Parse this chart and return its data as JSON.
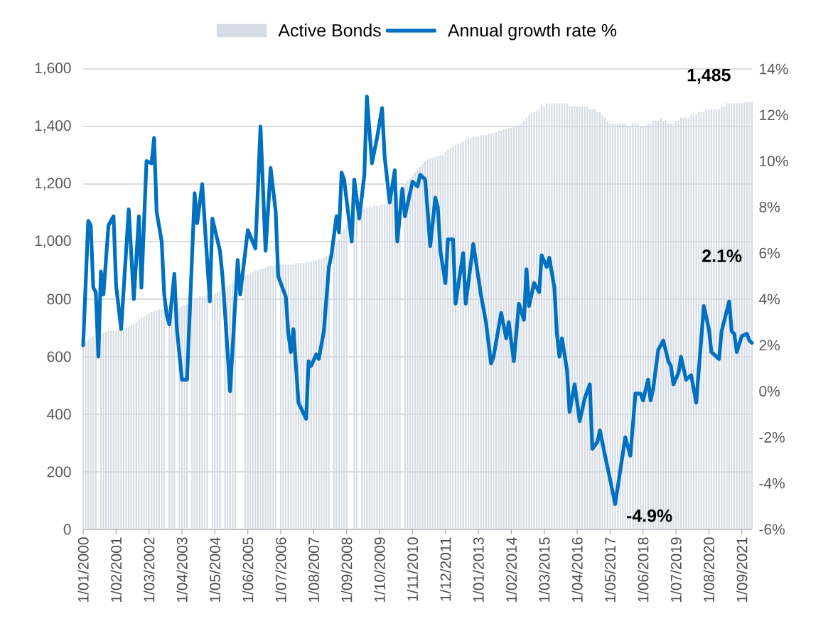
{
  "chart_data": {
    "type": "bar",
    "xlim": [
      "2000-01",
      "2022-01"
    ],
    "xticks": [
      {
        "value": "2000-01",
        "label": "1/01/2000"
      },
      {
        "value": "2001-02",
        "label": "1/02/2001"
      },
      {
        "value": "2002-03",
        "label": "1/03/2002"
      },
      {
        "value": "2003-04",
        "label": "1/04/2003"
      },
      {
        "value": "2004-05",
        "label": "1/05/2004"
      },
      {
        "value": "2005-06",
        "label": "1/06/2005"
      },
      {
        "value": "2006-07",
        "label": "1/07/2006"
      },
      {
        "value": "2007-08",
        "label": "1/08/2007"
      },
      {
        "value": "2008-09",
        "label": "1/09/2008"
      },
      {
        "value": "2009-10",
        "label": "1/10/2009"
      },
      {
        "value": "2010-11",
        "label": "1/11/2010"
      },
      {
        "value": "2011-12",
        "label": "1/12/2011"
      },
      {
        "value": "2013-01",
        "label": "1/01/2013"
      },
      {
        "value": "2014-02",
        "label": "1/02/2014"
      },
      {
        "value": "2015-03",
        "label": "1/03/2015"
      },
      {
        "value": "2016-04",
        "label": "1/04/2016"
      },
      {
        "value": "2017-05",
        "label": "1/05/2017"
      },
      {
        "value": "2018-06",
        "label": "1/06/2018"
      },
      {
        "value": "2019-07",
        "label": "1/07/2019"
      },
      {
        "value": "2020-08",
        "label": "1/08/2020"
      },
      {
        "value": "2021-09",
        "label": "1/09/2021"
      }
    ],
    "ylim": [
      0,
      1600
    ],
    "yticks": [
      0,
      200,
      400,
      600,
      800,
      {
        "value": 1000,
        "label": "1,000"
      },
      {
        "value": 1200,
        "label": "1,200"
      },
      {
        "value": 1400,
        "label": "1,400"
      },
      {
        "value": 1600,
        "label": "1,600"
      }
    ],
    "y2lim": [
      -6,
      14
    ],
    "y2ticks": [
      {
        "value": -6,
        "label": "-6%"
      },
      {
        "value": -4,
        "label": "-4%"
      },
      {
        "value": -2,
        "label": "-2%"
      },
      {
        "value": 0,
        "label": "0%"
      },
      {
        "value": 2,
        "label": "2%"
      },
      {
        "value": 4,
        "label": "4%"
      },
      {
        "value": 6,
        "label": "6%"
      },
      {
        "value": 8,
        "label": "8%"
      },
      {
        "value": 10,
        "label": "10%"
      },
      {
        "value": 12,
        "label": "12%"
      },
      {
        "value": 14,
        "label": "14%"
      }
    ],
    "grid": "y",
    "legend": "top",
    "x": [
      "2000-01",
      "2000-02",
      "2000-03",
      "2000-04",
      "2000-05",
      "2000-06",
      "2000-07",
      "2000-08",
      "2000-09",
      "2000-10",
      "2000-11",
      "2000-12",
      "2001-01",
      "2001-02",
      "2001-03",
      "2001-04",
      "2001-05",
      "2001-06",
      "2001-07",
      "2001-08",
      "2001-09",
      "2001-10",
      "2001-11",
      "2001-12",
      "2002-01",
      "2002-02",
      "2002-03",
      "2002-04",
      "2002-05",
      "2002-06",
      "2002-07",
      "2002-08",
      "2002-09",
      "2002-10",
      "2002-11",
      "2002-12",
      "2003-01",
      "2003-02",
      "2003-03",
      "2003-04",
      "2003-05",
      "2003-06",
      "2003-07",
      "2003-08",
      "2003-09",
      "2003-10",
      "2003-11",
      "2003-12",
      "2004-01",
      "2004-02",
      "2004-03",
      "2004-04",
      "2004-05",
      "2004-06",
      "2004-07",
      "2004-08",
      "2004-09",
      "2004-10",
      "2004-11",
      "2004-12",
      "2005-01",
      "2005-02",
      "2005-03",
      "2005-04",
      "2005-05",
      "2005-06",
      "2005-07",
      "2005-08",
      "2005-09",
      "2005-10",
      "2005-11",
      "2005-12",
      "2006-01",
      "2006-02",
      "2006-03",
      "2006-04",
      "2006-05",
      "2006-06",
      "2006-07",
      "2006-08",
      "2006-09",
      "2006-10",
      "2006-11",
      "2006-12",
      "2007-01",
      "2007-02",
      "2007-03",
      "2007-04",
      "2007-05",
      "2007-06",
      "2007-07",
      "2007-08",
      "2007-09",
      "2007-10",
      "2007-11",
      "2007-12",
      "2008-01",
      "2008-02",
      "2008-03",
      "2008-04",
      "2008-05",
      "2008-06",
      "2008-07",
      "2008-08",
      "2008-09",
      "2008-10",
      "2008-11",
      "2008-12",
      "2009-01",
      "2009-02",
      "2009-03",
      "2009-04",
      "2009-05",
      "2009-06",
      "2009-07",
      "2009-08",
      "2009-09",
      "2009-10",
      "2009-11",
      "2009-12",
      "2010-01",
      "2010-02",
      "2010-03",
      "2010-04",
      "2010-05",
      "2010-06",
      "2010-07",
      "2010-08",
      "2010-09",
      "2010-10",
      "2010-11",
      "2010-12",
      "2011-01",
      "2011-02",
      "2011-03",
      "2011-04",
      "2011-05",
      "2011-06",
      "2011-07",
      "2011-08",
      "2011-09",
      "2011-10",
      "2011-11",
      "2011-12",
      "2012-01",
      "2012-02",
      "2012-03",
      "2012-04",
      "2012-05",
      "2012-06",
      "2012-07",
      "2012-08",
      "2012-09",
      "2012-10",
      "2012-11",
      "2012-12",
      "2013-01",
      "2013-02",
      "2013-03",
      "2013-04",
      "2013-05",
      "2013-06",
      "2013-07",
      "2013-08",
      "2013-09",
      "2013-10",
      "2013-11",
      "2013-12",
      "2014-01",
      "2014-02",
      "2014-03",
      "2014-04",
      "2014-05",
      "2014-06",
      "2014-07",
      "2014-08",
      "2014-09",
      "2014-10",
      "2014-11",
      "2014-12",
      "2015-01",
      "2015-02",
      "2015-03",
      "2015-04",
      "2015-05",
      "2015-06",
      "2015-07",
      "2015-08",
      "2015-09",
      "2015-10",
      "2015-11",
      "2015-12",
      "2016-01",
      "2016-02",
      "2016-03",
      "2016-04",
      "2016-05",
      "2016-06",
      "2016-07",
      "2016-08",
      "2016-09",
      "2016-10",
      "2016-11",
      "2016-12",
      "2017-01",
      "2017-02",
      "2017-03",
      "2017-04",
      "2017-05",
      "2017-06",
      "2017-07",
      "2017-08",
      "2017-09",
      "2017-10",
      "2017-11",
      "2017-12",
      "2018-01",
      "2018-02",
      "2018-03",
      "2018-04",
      "2018-05",
      "2018-06",
      "2018-07",
      "2018-08",
      "2018-09",
      "2018-10",
      "2018-11",
      "2018-12",
      "2019-01",
      "2019-02",
      "2019-03",
      "2019-04",
      "2019-05",
      "2019-06",
      "2019-07",
      "2019-08",
      "2019-09",
      "2019-10",
      "2019-11",
      "2019-12",
      "2020-01",
      "2020-02",
      "2020-03",
      "2020-04",
      "2020-05",
      "2020-06",
      "2020-07",
      "2020-08",
      "2020-09",
      "2020-10",
      "2020-11",
      "2020-12",
      "2021-01",
      "2021-02",
      "2021-03",
      "2021-04",
      "2021-05",
      "2021-06",
      "2021-07",
      "2021-08",
      "2021-09",
      "2021-10",
      "2021-11",
      "2021-12",
      "2022-01"
    ],
    "series": [
      {
        "name": "Active Bonds",
        "color": "#d6dce5",
        "values": [
          640,
          650,
          660,
          665,
          670,
          675,
          null,
          680,
          685,
          685,
          690,
          690,
          690,
          690,
          695,
          695,
          700,
          700,
          705,
          710,
          715,
          720,
          730,
          735,
          740,
          745,
          750,
          755,
          760,
          760,
          765,
          765,
          765,
          null,
          770,
          770,
          770,
          null,
          770,
          775,
          780,
          785,
          null,
          795,
          800,
          805,
          810,
          810,
          810,
          815,
          null,
          815,
          820,
          825,
          830,
          null,
          840,
          845,
          850,
          855,
          860,
          null,
          null,
          null,
          880,
          885,
          890,
          895,
          900,
          900,
          905,
          905,
          910,
          915,
          915,
          915,
          920,
          null,
          920,
          920,
          920,
          920,
          920,
          920,
          925,
          925,
          925,
          925,
          930,
          930,
          930,
          935,
          935,
          940,
          940,
          945,
          950,
          955,
          null,
          980,
          995,
          1010,
          1030,
          1045,
          1060,
          null,
          null,
          1095,
          1105,
          null,
          1115,
          1115,
          1120,
          1120,
          1120,
          1125,
          1125,
          1125,
          1130,
          1130,
          1135,
          1140,
          1150,
          1160,
          1170,
          1180,
          null,
          1200,
          1210,
          1220,
          1230,
          1240,
          1250,
          1260,
          1270,
          1280,
          1285,
          1290,
          1290,
          1295,
          1295,
          1300,
          1300,
          1310,
          1320,
          1325,
          1330,
          1335,
          1340,
          1345,
          1350,
          1355,
          1360,
          1360,
          1365,
          1365,
          1365,
          1370,
          1370,
          1370,
          1375,
          1375,
          1375,
          1380,
          1385,
          1385,
          1390,
          1390,
          1395,
          1395,
          1400,
          1400,
          1405,
          1410,
          1420,
          1430,
          1440,
          1445,
          1450,
          1455,
          1460,
          1470,
          1470,
          1480,
          1480,
          1480,
          1480,
          1480,
          1480,
          1480,
          1480,
          1480,
          1470,
          1470,
          1470,
          1470,
          1470,
          1470,
          1470,
          1470,
          1460,
          1460,
          1460,
          1450,
          1450,
          1440,
          1430,
          1420,
          1410,
          1410,
          1410,
          1410,
          1410,
          1410,
          1410,
          1400,
          1400,
          1410,
          1410,
          1410,
          1400,
          1400,
          1400,
          1410,
          1410,
          1420,
          1420,
          1420,
          1430,
          1420,
          1420,
          1410,
          1410,
          1410,
          1420,
          1420,
          1430,
          1430,
          1430,
          1430,
          1440,
          1440,
          1440,
          1450,
          1450,
          1450,
          1460,
          1460,
          1460,
          1460,
          1460,
          1460,
          1470,
          1470,
          1480,
          1480,
          1480,
          1480,
          1480,
          1480,
          1480,
          1485,
          1485,
          1485,
          1485
        ]
      },
      {
        "name": "Annual growth rate %",
        "type": "line",
        "axis": "y2",
        "color": "#0070c0",
        "x": [
          "2000-01",
          "2000-03",
          "2000-04",
          "2000-05",
          "2000-06",
          "2000-07",
          "2000-08",
          "2000-09",
          "2000-11",
          "2001-01",
          "2001-02",
          "2001-04",
          "2001-07",
          "2001-09",
          "2001-11",
          "2001-12",
          "2002-02",
          "2002-04",
          "2002-05",
          "2002-06",
          "2002-08",
          "2002-09",
          "2002-10",
          "2002-11",
          "2003-01",
          "2003-02",
          "2003-04",
          "2003-06",
          "2003-09",
          "2003-10",
          "2003-12",
          "2004-03",
          "2004-04",
          "2004-07",
          "2004-08",
          "2004-09",
          "2004-11",
          "2005-02",
          "2005-03",
          "2005-06",
          "2005-09",
          "2005-11",
          "2006-01",
          "2006-03",
          "2006-05",
          "2006-06",
          "2006-07",
          "2006-09",
          "2006-10",
          "2006-11",
          "2006-12",
          "2007-02",
          "2007-05",
          "2007-06",
          "2007-07",
          "2007-09",
          "2007-10",
          "2007-12",
          "2008-02",
          "2008-03",
          "2008-05",
          "2008-06",
          "2008-07",
          "2008-08",
          "2008-11",
          "2008-12",
          "2009-02",
          "2009-04",
          "2009-05",
          "2009-07",
          "2009-09",
          "2009-11",
          "2009-12",
          "2010-02",
          "2010-04",
          "2010-05",
          "2010-07",
          "2010-08",
          "2010-11",
          "2011-01",
          "2011-02",
          "2011-04",
          "2011-05",
          "2011-06",
          "2011-08",
          "2011-09",
          "2011-10",
          "2011-12",
          "2012-01",
          "2012-03",
          "2012-04",
          "2012-07",
          "2012-08",
          "2012-11",
          "2013-02",
          "2013-04",
          "2013-06",
          "2013-07",
          "2013-10",
          "2013-12",
          "2014-01",
          "2014-03",
          "2014-05",
          "2014-07",
          "2014-08",
          "2014-09",
          "2014-11",
          "2015-01",
          "2015-02",
          "2015-04",
          "2015-05",
          "2015-07",
          "2015-08",
          "2015-09",
          "2015-10",
          "2015-12",
          "2016-01",
          "2016-03",
          "2016-05",
          "2016-07",
          "2016-09",
          "2016-10",
          "2016-12",
          "2017-01",
          "2017-03",
          "2017-04",
          "2017-07",
          "2017-11",
          "2018-01",
          "2018-03",
          "2018-05",
          "2018-06",
          "2018-08",
          "2018-09",
          "2018-10",
          "2018-12",
          "2019-02",
          "2019-04",
          "2019-05",
          "2019-06",
          "2019-08",
          "2019-09",
          "2019-11",
          "2020-01",
          "2020-03",
          "2020-06",
          "2020-08",
          "2020-09",
          "2020-12",
          "2021-01",
          "2021-04",
          "2021-05",
          "2021-06",
          "2021-07",
          "2021-09",
          "2021-11",
          "2021-12",
          "2022-01"
        ],
        "values": [
          2.0,
          7.4,
          7.2,
          4.5,
          4.3,
          1.5,
          5.2,
          4.2,
          7.2,
          7.6,
          4.6,
          2.7,
          7.9,
          4.0,
          7.6,
          4.5,
          10.0,
          9.9,
          11.0,
          7.8,
          6.5,
          4.2,
          3.3,
          2.9,
          5.1,
          2.7,
          0.5,
          0.5,
          8.6,
          7.3,
          9.0,
          3.9,
          7.5,
          6.1,
          5.0,
          3.4,
          0.0,
          5.7,
          4.2,
          7.0,
          6.2,
          11.5,
          6.1,
          9.7,
          7.8,
          5.0,
          4.7,
          4.1,
          2.5,
          1.7,
          2.7,
          -0.5,
          -1.2,
          1.3,
          1.1,
          1.6,
          1.4,
          2.6,
          5.4,
          5.9,
          7.6,
          6.9,
          9.5,
          9.2,
          6.5,
          9.2,
          7.5,
          9.4,
          12.8,
          9.9,
          11.0,
          12.3,
          10.2,
          8.2,
          9.6,
          6.5,
          8.8,
          7.6,
          9.1,
          8.9,
          9.4,
          9.2,
          7.8,
          6.3,
          8.4,
          8.0,
          6.1,
          4.7,
          6.6,
          6.6,
          3.8,
          6.0,
          3.8,
          6.4,
          4.2,
          3.0,
          1.2,
          1.5,
          3.4,
          2.3,
          3.0,
          1.3,
          3.8,
          3.1,
          5.3,
          3.7,
          4.7,
          4.3,
          5.9,
          5.4,
          5.8,
          4.5,
          2.5,
          1.5,
          2.3,
          0.9,
          -0.9,
          0.3,
          -1.3,
          -0.3,
          0.3,
          -2.5,
          -2.2,
          -1.7,
          -2.8,
          -3.3,
          -4.9,
          -2.0,
          -2.8,
          -0.1,
          -0.1,
          -0.4,
          0.5,
          -0.4,
          0.1,
          1.8,
          2.2,
          1.3,
          1.1,
          0.3,
          0.8,
          1.5,
          0.5,
          0.7,
          -0.5,
          3.7,
          2.7,
          1.7,
          1.4,
          2.6,
          3.9,
          2.6,
          2.5,
          1.7,
          2.4,
          2.5,
          2.2,
          2.1
        ]
      }
    ],
    "annotations": [
      {
        "text": "1,485",
        "x": "2022-01",
        "y": 1485
      },
      {
        "text": "-4.9%",
        "x": "2017-07",
        "y": -4.9
      },
      "2.1%"
    ]
  }
}
